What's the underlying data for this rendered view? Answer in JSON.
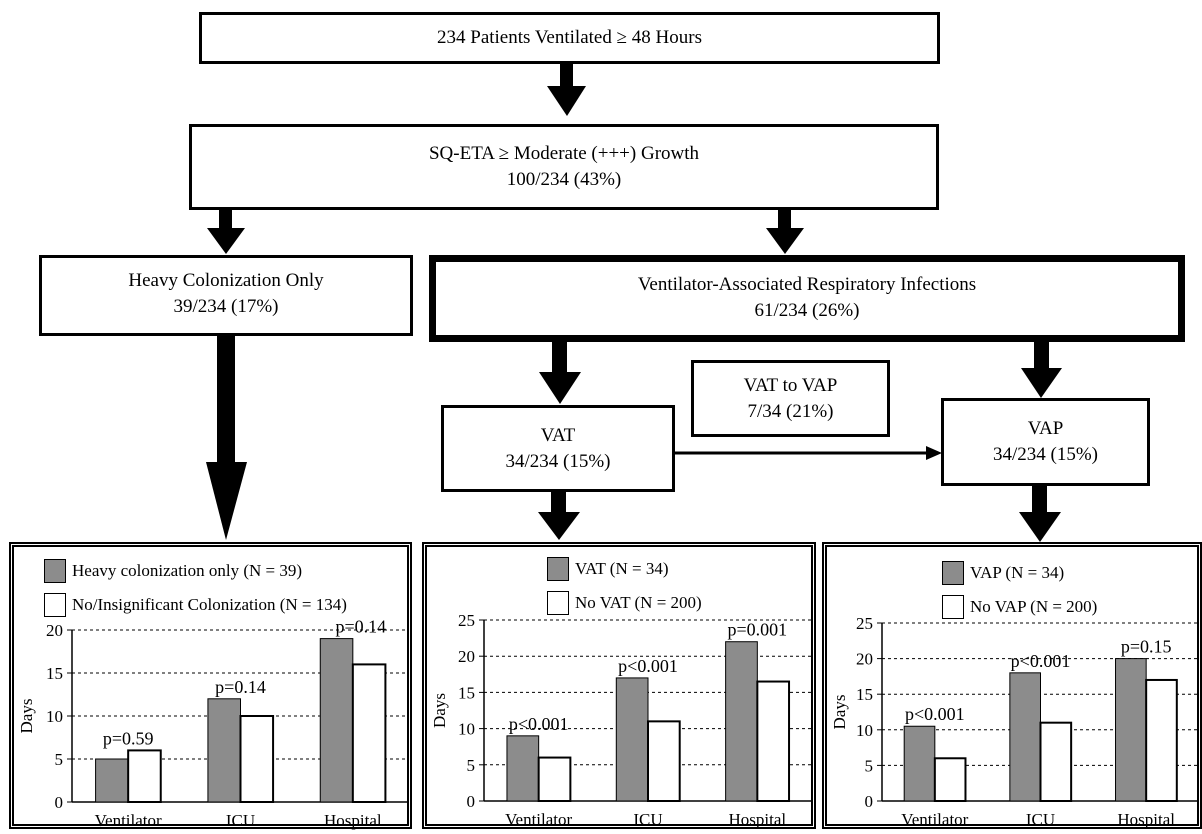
{
  "flowchart": {
    "top_box": "234 Patients Ventilated ≥ 48 Hours",
    "sq_box": {
      "line1": "SQ-ETA ≥ Moderate (+++) Growth",
      "line2": "100/234 (43%)"
    },
    "heavy_box": {
      "line1": "Heavy Colonization Only",
      "line2": "39/234 (17%)"
    },
    "vari_box": {
      "line1": "Ventilator-Associated Respiratory Infections",
      "line2": "61/234 (26%)"
    },
    "vat_to_vap_box": {
      "line1": "VAT to VAP",
      "line2": "7/34 (21%)"
    },
    "vat_box": {
      "line1": "VAT",
      "line2": "34/234 (15%)"
    },
    "vap_box": {
      "line1": "VAP",
      "line2": "34/234 (15%)"
    }
  },
  "colors": {
    "group": "#8c8c8c",
    "comparison": "#ffffff",
    "border": "#000000"
  },
  "chart_data": [
    {
      "type": "bar",
      "categories": [
        "Ventilator",
        "ICU",
        "Hospital"
      ],
      "series": [
        {
          "name": "Heavy colonization only (N = 39)",
          "values": [
            5,
            12,
            19
          ]
        },
        {
          "name": "No/Insignificant Colonization (N = 134)",
          "values": [
            6,
            10,
            16
          ]
        }
      ],
      "p_values": [
        "p=0.59",
        "p=0.14",
        "p=0.14"
      ],
      "ylabel": "Days",
      "ylim": [
        0,
        20
      ],
      "yticks": [
        "0",
        "5",
        "10",
        "15",
        "20"
      ],
      "grid": "dashed horizontal",
      "legend": "top-left"
    },
    {
      "type": "bar",
      "categories": [
        "Ventilator",
        "ICU",
        "Hospital"
      ],
      "series": [
        {
          "name": "VAT (N = 34)",
          "values": [
            9,
            17,
            22
          ]
        },
        {
          "name": "No VAT (N = 200)",
          "values": [
            6,
            11,
            16.5
          ]
        }
      ],
      "p_values": [
        "p<0.001",
        "p<0.001",
        "p=0.001"
      ],
      "ylabel": "Days",
      "ylim": [
        0,
        25
      ],
      "yticks": [
        "0",
        "5",
        "10",
        "15",
        "20",
        "25"
      ],
      "grid": "dashed horizontal",
      "legend": "top-center"
    },
    {
      "type": "bar",
      "categories": [
        "Ventilator",
        "ICU",
        "Hospital"
      ],
      "series": [
        {
          "name": "VAP (N = 34)",
          "values": [
            10.5,
            18,
            20
          ]
        },
        {
          "name": "No VAP (N = 200)",
          "values": [
            6,
            11,
            17
          ]
        }
      ],
      "p_values": [
        "p<0.001",
        "p<0.001",
        "p=0.15"
      ],
      "ylabel": "Days",
      "ylim": [
        0,
        25
      ],
      "yticks": [
        "0",
        "5",
        "10",
        "15",
        "20",
        "25"
      ],
      "grid": "dashed horizontal",
      "legend": "top-center"
    }
  ]
}
